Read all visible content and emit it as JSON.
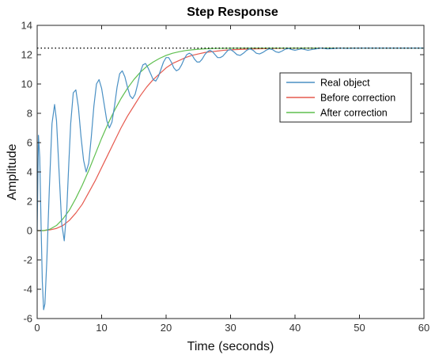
{
  "chart_data": {
    "type": "line",
    "title": "Step Response",
    "xlabel": "Time (seconds)",
    "ylabel": "Amplitude",
    "xlim": [
      0,
      60
    ],
    "ylim": [
      -6,
      14
    ],
    "xticks": [
      0,
      10,
      20,
      30,
      40,
      50,
      60
    ],
    "yticks": [
      -6,
      -4,
      -2,
      0,
      2,
      4,
      6,
      8,
      10,
      12,
      14
    ],
    "grid": false,
    "legend_position": "top-right",
    "reference_line": {
      "y": 12.45,
      "style": "dotted",
      "color": "#000000"
    },
    "series": [
      {
        "name": "Real object",
        "color": "#4a90c4",
        "x": [
          0,
          0.2,
          0.4,
          0.6,
          0.8,
          1.0,
          1.2,
          1.5,
          1.9,
          2.3,
          2.7,
          3.0,
          3.4,
          3.8,
          4.2,
          4.6,
          4.9,
          5.2,
          5.6,
          6.0,
          6.4,
          6.8,
          7.2,
          7.6,
          8.0,
          8.4,
          8.8,
          9.2,
          9.6,
          10.0,
          10.4,
          10.8,
          11.2,
          11.6,
          12.0,
          12.4,
          12.8,
          13.2,
          13.6,
          14.0,
          14.4,
          14.8,
          15.2,
          15.6,
          16.0,
          16.4,
          16.8,
          17.2,
          17.6,
          18.0,
          18.4,
          18.8,
          19.2,
          19.6,
          20.0,
          20.4,
          20.8,
          21.2,
          21.6,
          22.0,
          22.4,
          22.8,
          23.2,
          23.6,
          24.0,
          24.4,
          24.8,
          25.2,
          25.6,
          26.0,
          26.4,
          26.8,
          27.2,
          27.6,
          28.0,
          28.4,
          28.8,
          29.2,
          29.6,
          30.0,
          30.5,
          31.0,
          31.5,
          32.0,
          32.5,
          33.0,
          33.5,
          34.0,
          34.5,
          35.0,
          35.5,
          36.0,
          36.5,
          37.0,
          37.5,
          38.0,
          38.5,
          39.0,
          39.5,
          40.0,
          41.0,
          42.0,
          43.0,
          44.0,
          45.0,
          46.0,
          47.0,
          48.0,
          50.0,
          52.0,
          55.0,
          58.0,
          60.0
        ],
        "y": [
          0,
          6.5,
          5.0,
          0.5,
          -3.5,
          -5.4,
          -5.0,
          -2.0,
          3.0,
          7.3,
          8.6,
          7.5,
          4.0,
          0.5,
          -0.7,
          1.5,
          4.5,
          7.3,
          9.4,
          9.6,
          8.4,
          6.4,
          4.8,
          4.0,
          4.6,
          6.4,
          8.5,
          10.0,
          10.3,
          9.7,
          8.6,
          7.5,
          7.0,
          7.4,
          8.5,
          9.8,
          10.7,
          10.9,
          10.5,
          9.8,
          9.2,
          9.0,
          9.3,
          10.0,
          10.8,
          11.3,
          11.4,
          11.1,
          10.7,
          10.3,
          10.2,
          10.5,
          11.0,
          11.5,
          11.8,
          11.8,
          11.5,
          11.1,
          10.9,
          11.0,
          11.3,
          11.7,
          12.0,
          12.1,
          12.0,
          11.7,
          11.5,
          11.5,
          11.7,
          12.0,
          12.2,
          12.3,
          12.2,
          12.0,
          11.8,
          11.8,
          11.9,
          12.1,
          12.3,
          12.35,
          12.2,
          12.0,
          11.95,
          12.1,
          12.3,
          12.4,
          12.3,
          12.1,
          12.05,
          12.15,
          12.3,
          12.4,
          12.35,
          12.2,
          12.15,
          12.25,
          12.38,
          12.42,
          12.35,
          12.3,
          12.4,
          12.3,
          12.38,
          12.45,
          12.4,
          12.42,
          12.45,
          12.43,
          12.45,
          12.45,
          12.45,
          12.45,
          12.45
        ]
      },
      {
        "name": "Before correction",
        "color": "#e65a4f",
        "x": [
          0,
          1,
          2,
          3,
          4,
          5,
          6,
          7,
          8,
          9,
          10,
          11,
          12,
          13,
          14,
          15,
          16,
          17,
          18,
          19,
          20,
          21,
          22,
          23,
          24,
          25,
          26,
          27,
          28,
          29,
          30,
          32,
          34,
          36,
          38,
          40,
          45,
          50,
          55,
          60
        ],
        "y": [
          0,
          0.0,
          0.05,
          0.15,
          0.35,
          0.7,
          1.2,
          1.8,
          2.6,
          3.4,
          4.3,
          5.2,
          6.1,
          7.0,
          7.8,
          8.5,
          9.2,
          9.8,
          10.3,
          10.7,
          11.1,
          11.4,
          11.6,
          11.8,
          11.95,
          12.05,
          12.15,
          12.2,
          12.25,
          12.3,
          12.33,
          12.37,
          12.4,
          12.42,
          12.43,
          12.44,
          12.45,
          12.45,
          12.45,
          12.45
        ]
      },
      {
        "name": "After correction",
        "color": "#5fbf4f",
        "x": [
          0,
          1,
          2,
          3,
          4,
          5,
          6,
          7,
          8,
          9,
          10,
          11,
          12,
          13,
          14,
          15,
          16,
          17,
          18,
          19,
          20,
          21,
          22,
          23,
          24,
          25,
          26,
          27,
          28,
          30,
          32,
          34,
          36,
          40,
          45,
          50,
          55,
          60
        ],
        "y": [
          0,
          0.0,
          0.1,
          0.35,
          0.8,
          1.4,
          2.2,
          3.1,
          4.1,
          5.2,
          6.3,
          7.3,
          8.2,
          9.0,
          9.7,
          10.3,
          10.8,
          11.2,
          11.5,
          11.75,
          11.95,
          12.1,
          12.2,
          12.28,
          12.33,
          12.37,
          12.4,
          12.42,
          12.43,
          12.44,
          12.45,
          12.45,
          12.45,
          12.45,
          12.45,
          12.45,
          12.45,
          12.45
        ]
      }
    ]
  }
}
